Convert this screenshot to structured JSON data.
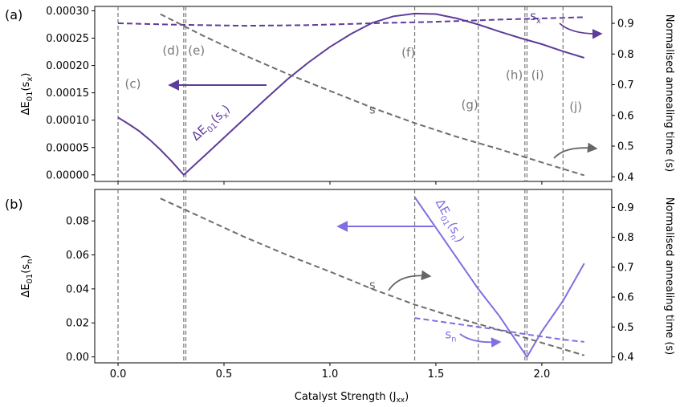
{
  "figure": {
    "xlabel": "Catalyst Strength (J",
    "xlabel_sub": "xx",
    "xlabel_close": ")"
  },
  "chart_data": [
    {
      "type": "line",
      "panel_label": "(a)",
      "xlim": [
        -0.11,
        2.33
      ],
      "x_ticks": [
        0.0,
        0.5,
        1.0,
        1.5,
        2.0
      ],
      "x_tick_labels": [
        "0.0",
        "0.5",
        "1.0",
        "1.5",
        "2.0"
      ],
      "ylabel": {
        "main": "ΔE",
        "sub1": "01",
        "mid": "(s",
        "sub2": "x",
        "end": ")"
      },
      "ylim": [
        -1.2e-05,
        0.000308
      ],
      "y_ticks": [
        0,
        5e-05,
        0.0001,
        0.00015,
        0.0002,
        0.00025,
        0.0003
      ],
      "y_tick_labels": [
        "0.00000",
        "0.00005",
        "0.00010",
        "0.00015",
        "0.00020",
        "0.00025",
        "0.00030"
      ],
      "y2label": "Normalised annealing time (s)",
      "y2lim": [
        0.385,
        0.955
      ],
      "y2_ticks": [
        0.4,
        0.5,
        0.6,
        0.7,
        0.8,
        0.9
      ],
      "y2_tick_labels": [
        "0.4",
        "0.5",
        "0.6",
        "0.7",
        "0.8",
        "0.9"
      ],
      "vlines": [
        0.0,
        0.31,
        0.32,
        1.4,
        1.7,
        1.92,
        1.93,
        2.1
      ],
      "events": [
        {
          "label": "(c)",
          "x": 0.07,
          "y": 0.000159
        },
        {
          "label": "(d)",
          "x": 0.25,
          "y": 0.00022
        },
        {
          "label": "(e)",
          "x": 0.37,
          "y": 0.00022
        },
        {
          "label": "(f)",
          "x": 1.37,
          "y": 0.000216
        },
        {
          "label": "(g)",
          "x": 1.66,
          "y": 0.000121
        },
        {
          "label": "(h)",
          "x": 1.87,
          "y": 0.000175
        },
        {
          "label": "(i)",
          "x": 1.98,
          "y": 0.000175
        },
        {
          "label": "(j)",
          "x": 2.16,
          "y": 0.000117
        }
      ],
      "series": [
        {
          "name": "ΔE01(sx)",
          "axis": "left",
          "style": "solid",
          "color": "#5e3c99",
          "x": [
            0.0,
            0.05,
            0.1,
            0.15,
            0.2,
            0.25,
            0.31,
            0.4,
            0.5,
            0.6,
            0.7,
            0.8,
            0.9,
            1.0,
            1.1,
            1.2,
            1.3,
            1.4,
            1.5,
            1.6,
            1.7,
            1.8,
            1.9,
            2.0,
            2.1,
            2.2
          ],
          "values": [
            0.000105,
            9.3e-05,
            8e-05,
            6.4e-05,
            4.6e-05,
            2.6e-05,
            0.0,
            3.2e-05,
            6.8e-05,
            0.000104,
            0.00014,
            0.000175,
            0.000206,
            0.000234,
            0.000258,
            0.000278,
            0.00029,
            0.000295,
            0.000294,
            0.000286,
            0.000275,
            0.000262,
            0.00025,
            0.000239,
            0.000226,
            0.000214
          ]
        },
        {
          "name": "sx",
          "axis": "right",
          "style": "dashed",
          "color": "#5e3c99",
          "x": [
            0.0,
            0.3,
            0.6,
            0.9,
            1.2,
            1.5,
            1.8,
            2.1,
            2.2
          ],
          "values": [
            0.9,
            0.895,
            0.892,
            0.894,
            0.9,
            0.905,
            0.912,
            0.918,
            0.92
          ]
        },
        {
          "name": "s",
          "axis": "right",
          "style": "dashed",
          "color": "#6e6e6e",
          "x": [
            0.2,
            0.4,
            0.6,
            0.8,
            1.0,
            1.2,
            1.4,
            1.6,
            1.8,
            2.0,
            2.2
          ],
          "values": [
            0.93,
            0.86,
            0.795,
            0.735,
            0.68,
            0.625,
            0.575,
            0.53,
            0.49,
            0.447,
            0.405
          ]
        }
      ],
      "annotations": [
        {
          "text": "ΔE",
          "sub": "01",
          "mid": "(s",
          "sub2": "x",
          "end": ")",
          "x": 0.45,
          "y": 9e-05,
          "rotate": -42,
          "color": "#5e3c99"
        },
        {
          "text": "s",
          "x": 1.2,
          "y": 0.000112,
          "color": "#6e6e6e"
        },
        {
          "text": "s",
          "sub": "x",
          "x": 1.97,
          "y": 0.000283,
          "color": "#5e3c99"
        }
      ]
    },
    {
      "type": "line",
      "panel_label": "(b)",
      "xlim": [
        -0.11,
        2.33
      ],
      "x_ticks": [
        0.0,
        0.5,
        1.0,
        1.5,
        2.0
      ],
      "x_tick_labels": [
        "0.0",
        "0.5",
        "1.0",
        "1.5",
        "2.0"
      ],
      "ylabel": {
        "main": "ΔE",
        "sub1": "01",
        "mid": "(s",
        "sub2": "n",
        "end": ")"
      },
      "ylim": [
        -0.0035,
        0.0985
      ],
      "y_ticks": [
        0,
        0.02,
        0.04,
        0.06,
        0.08
      ],
      "y_tick_labels": [
        "0.00",
        "0.02",
        "0.04",
        "0.06",
        "0.08"
      ],
      "y2label": "Normalised annealing time (s)",
      "y2lim": [
        0.38,
        0.96
      ],
      "y2_ticks": [
        0.4,
        0.5,
        0.6,
        0.7,
        0.8,
        0.9
      ],
      "y2_tick_labels": [
        "0.4",
        "0.5",
        "0.6",
        "0.7",
        "0.8",
        "0.9"
      ],
      "vlines": [
        0.0,
        0.31,
        0.32,
        1.4,
        1.7,
        1.92,
        1.93,
        2.1
      ],
      "events": [],
      "series": [
        {
          "name": "ΔE01(sn)",
          "axis": "left",
          "style": "solid",
          "color": "#7f6fe0",
          "x": [
            1.4,
            1.5,
            1.6,
            1.7,
            1.8,
            1.93,
            2.0,
            2.1,
            2.2
          ],
          "values": [
            0.094,
            0.076,
            0.058,
            0.04,
            0.024,
            0.0,
            0.015,
            0.033,
            0.055
          ]
        },
        {
          "name": "sn",
          "axis": "right",
          "style": "dashed",
          "color": "#7f6fe0",
          "x": [
            1.4,
            1.6,
            1.8,
            1.93,
            2.1,
            2.2
          ],
          "values": [
            0.53,
            0.51,
            0.49,
            0.475,
            0.458,
            0.45
          ]
        },
        {
          "name": "s",
          "axis": "right",
          "style": "dashed",
          "color": "#6e6e6e",
          "x": [
            0.2,
            0.4,
            0.6,
            0.8,
            1.0,
            1.2,
            1.4,
            1.6,
            1.8,
            2.0,
            2.2
          ],
          "values": [
            0.93,
            0.865,
            0.8,
            0.74,
            0.685,
            0.627,
            0.575,
            0.53,
            0.49,
            0.447,
            0.405
          ]
        }
      ],
      "annotations": [
        {
          "text": "ΔE",
          "sub": "01",
          "mid": "(s",
          "sub2": "n",
          "end": ")",
          "x": 1.55,
          "y": 0.079,
          "rotate": 62,
          "color": "#7f6fe0"
        },
        {
          "text": "s",
          "x": 1.2,
          "y": 0.04,
          "color": "#6e6e6e"
        },
        {
          "text": "s",
          "sub": "n",
          "x": 1.57,
          "y": 0.011,
          "color": "#7f6fe0"
        }
      ]
    }
  ]
}
